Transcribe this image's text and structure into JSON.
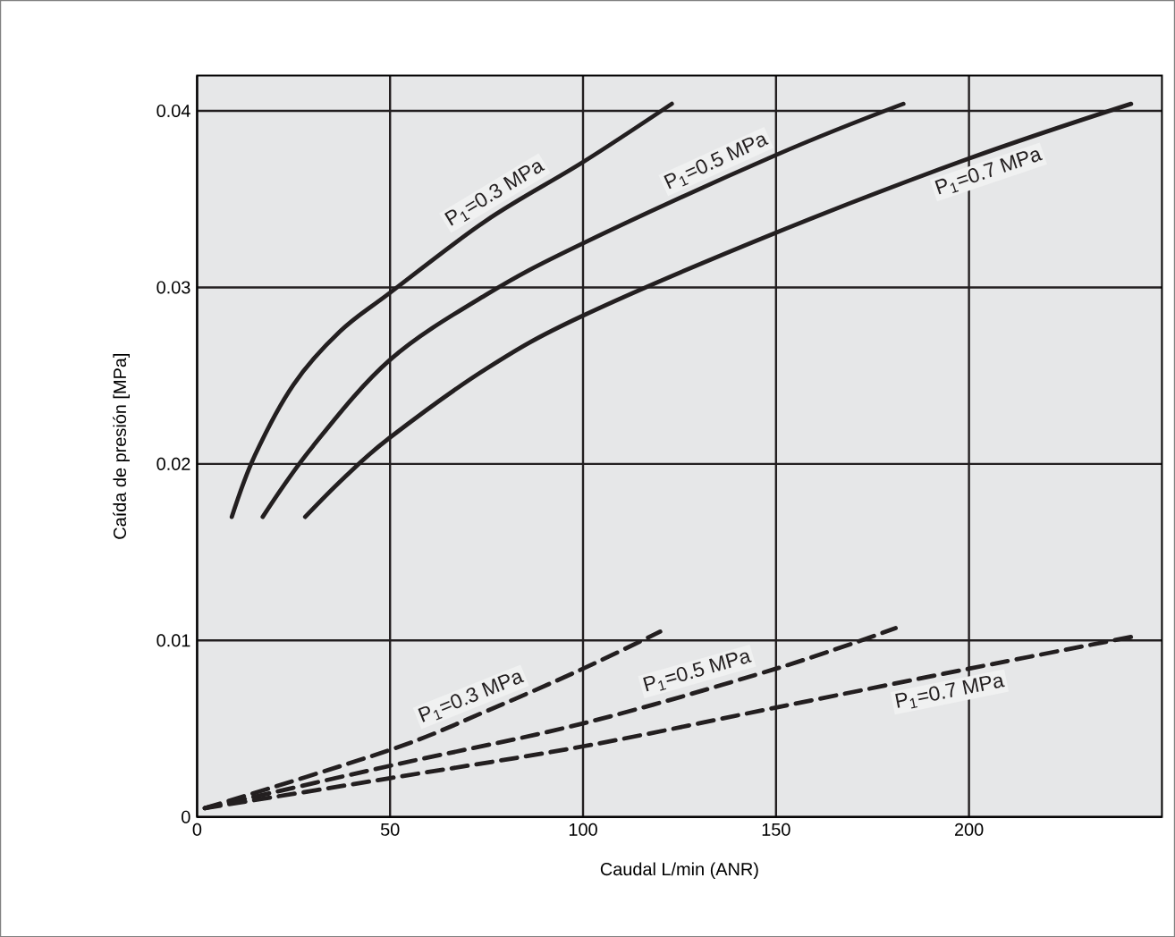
{
  "chart_data": {
    "type": "line",
    "xlabel": "Caudal L/min (ANR)",
    "ylabel": "Caída de presión [MPa]",
    "xlim": [
      0,
      250
    ],
    "ylim": [
      0,
      0.042
    ],
    "xticks": [
      0,
      50,
      100,
      150,
      200
    ],
    "yticks": [
      0,
      0.01,
      0.02,
      0.03,
      0.04
    ],
    "grid": true,
    "series": [
      {
        "name": "P$_{1}$=0.3 MPa",
        "color": "#231f20",
        "line_style": "solid",
        "x": [
          9,
          15,
          25,
          37,
          50,
          75,
          100,
          123
        ],
        "values": [
          0.017,
          0.0205,
          0.0245,
          0.0275,
          0.0297,
          0.0338,
          0.0371,
          0.0404
        ]
      },
      {
        "name": "P$_{1}$=0.5 MPa",
        "color": "#231f20",
        "line_style": "solid",
        "x": [
          17,
          30,
          50,
          75,
          100,
          150,
          183
        ],
        "values": [
          0.017,
          0.021,
          0.0259,
          0.0296,
          0.0325,
          0.0375,
          0.0404
        ]
      },
      {
        "name": "P$_{1}$=0.7 MPa",
        "color": "#231f20",
        "line_style": "solid",
        "x": [
          28,
          38,
          50,
          75,
          100,
          150,
          200,
          242
        ],
        "values": [
          0.017,
          0.0192,
          0.0215,
          0.0254,
          0.0284,
          0.0331,
          0.0373,
          0.0404
        ]
      },
      {
        "name": "P$_{1}$=0.3 MPa",
        "color": "#231f20",
        "line_style": "dashed",
        "x": [
          2,
          50,
          75,
          100,
          120
        ],
        "values": [
          0.0005,
          0.0038,
          0.006,
          0.0084,
          0.0105
        ]
      },
      {
        "name": "P$_{1}$=0.5 MPa",
        "color": "#231f20",
        "line_style": "dashed",
        "x": [
          2,
          50,
          100,
          150,
          181
        ],
        "values": [
          0.0005,
          0.0029,
          0.0053,
          0.0084,
          0.0107
        ]
      },
      {
        "name": "P$_{1}$=0.7 MPa",
        "color": "#231f20",
        "line_style": "dashed",
        "x": [
          2,
          50,
          100,
          150,
          200,
          242
        ],
        "values": [
          0.0005,
          0.0022,
          0.004,
          0.0062,
          0.0084,
          0.0102
        ]
      }
    ]
  }
}
